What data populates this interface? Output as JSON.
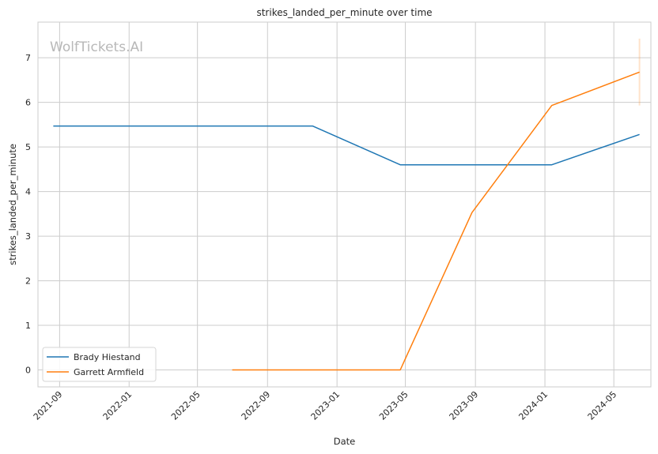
{
  "chart_data": {
    "type": "line",
    "title": "strikes_landed_per_minute over time",
    "xlabel": "Date",
    "ylabel": "strikes_landed_per_minute",
    "watermark": "WolfTickets.AI",
    "x_ticks": [
      "2021-09",
      "2022-01",
      "2022-05",
      "2022-09",
      "2023-01",
      "2023-05",
      "2023-09",
      "2024-01",
      "2024-05"
    ],
    "y_ticks": [
      0,
      1,
      2,
      3,
      4,
      5,
      6,
      7
    ],
    "xlim": [
      "2021-07-25",
      "2024-07-05"
    ],
    "ylim": [
      -0.38,
      7.8
    ],
    "grid": true,
    "legend_position": "lower-left",
    "series": [
      {
        "name": "Brady Hiestand",
        "color": "#1f77b4",
        "points": [
          {
            "x": "2021-08-21",
            "y": 5.47
          },
          {
            "x": "2022-11-19",
            "y": 5.47
          },
          {
            "x": "2023-04-22",
            "y": 4.6
          },
          {
            "x": "2024-01-13",
            "y": 4.6
          },
          {
            "x": "2024-06-15",
            "y": 5.28
          }
        ]
      },
      {
        "name": "Garrett Armfield",
        "color": "#ff7f0e",
        "points": [
          {
            "x": "2022-07-01",
            "y": 0.0
          },
          {
            "x": "2023-04-22",
            "y": 0.0
          },
          {
            "x": "2023-08-26",
            "y": 3.53
          },
          {
            "x": "2024-01-13",
            "y": 5.93
          },
          {
            "x": "2024-06-15",
            "y": 6.68
          }
        ],
        "error_band": {
          "x": "2024-06-15",
          "low": 5.93,
          "high": 7.43
        }
      }
    ]
  }
}
